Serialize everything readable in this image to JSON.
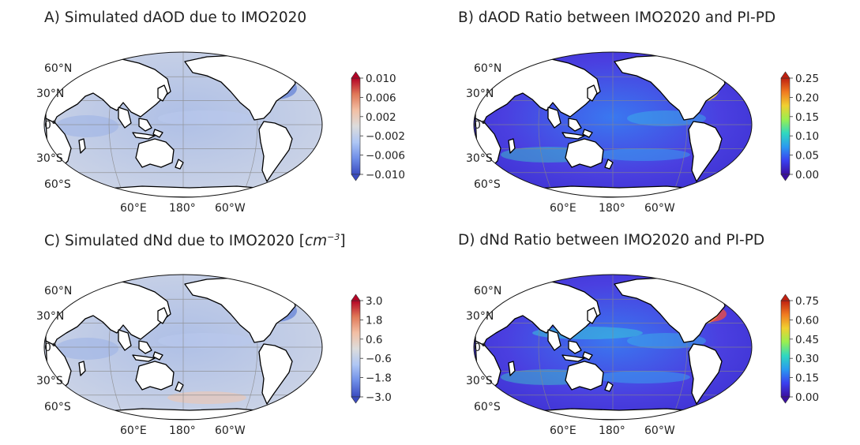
{
  "panels": [
    {
      "id": "A",
      "title": "A) Simulated dAOD due to IMO2020",
      "title_units_html": "",
      "colormap": "diverging-blue-white-red",
      "colorbar_ticks": [
        "0.010",
        "0.006",
        "0.002",
        "−0.002",
        "−0.006",
        "−0.010"
      ],
      "lat_labels": [
        "60°N",
        "30°N",
        "0°",
        "30°S",
        "60°S"
      ],
      "lon_labels": [
        "60°E",
        "180°",
        "60°W"
      ]
    },
    {
      "id": "B",
      "title": "B) dAOD Ratio between IMO2020 and PI-PD",
      "title_units_html": "",
      "colormap": "rainbow-purple-to-red",
      "colorbar_ticks": [
        "0.25",
        "0.20",
        "0.15",
        "0.10",
        "0.05",
        "0.00"
      ],
      "lat_labels": [
        "60°N",
        "30°N",
        "0°",
        "30°S",
        "60°S"
      ],
      "lon_labels": [
        "60°E",
        "180°",
        "60°W"
      ]
    },
    {
      "id": "C",
      "title": "C) Simulated dNd due to IMO2020 ",
      "title_units_html": "[<i>cm</i><sup>−3</sup>]",
      "colormap": "diverging-blue-white-red",
      "colorbar_ticks": [
        "3.0",
        "1.8",
        "0.6",
        "−0.6",
        "−1.8",
        "−3.0"
      ],
      "lat_labels": [
        "60°N",
        "30°N",
        "0°",
        "30°S",
        "60°S"
      ],
      "lon_labels": [
        "60°E",
        "180°",
        "60°W"
      ]
    },
    {
      "id": "D",
      "title": "D) dNd Ratio between IMO2020 and PI-PD",
      "title_units_html": "",
      "colormap": "rainbow-purple-to-red",
      "colorbar_ticks": [
        "0.75",
        "0.60",
        "0.45",
        "0.30",
        "0.15",
        "0.00"
      ],
      "lat_labels": [
        "60°N",
        "30°N",
        "0°",
        "30°S",
        "60°S"
      ],
      "lon_labels": [
        "60°E",
        "180°",
        "60°W"
      ]
    }
  ],
  "colors": {
    "ocean_diverging": "#cfd6e6",
    "ocean_diverging_blue": "#aebfe6",
    "ocean_rainbow": "#4a3fe0",
    "ocean_rainbow_light": "#3a78f0",
    "land": "#ffffff",
    "coast": "#000000",
    "grid": "#888888"
  }
}
